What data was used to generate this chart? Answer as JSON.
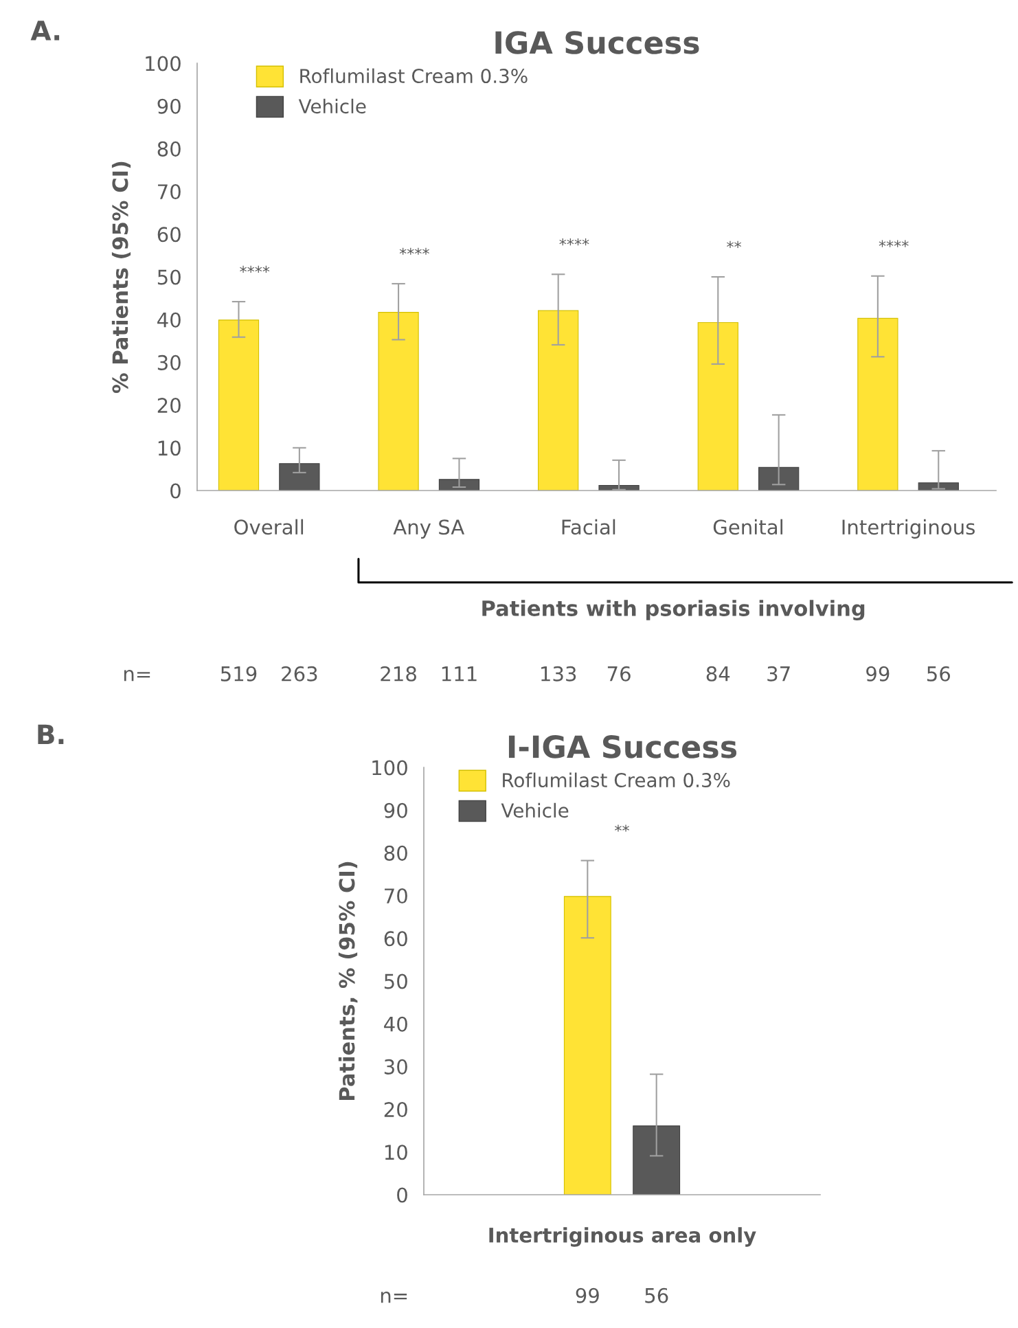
{
  "chart_data": [
    {
      "type": "bar",
      "title": "IGA Success",
      "ylabel": "% Patients (95% CI)",
      "categories": [
        "Overall",
        "Any SA",
        "Facial",
        "Genital",
        "Intertriginous"
      ],
      "series": [
        {
          "name": "Roflumilast Cream 0.3%",
          "color": "#ffe335",
          "values": [
            39.9,
            41.7,
            42.1,
            39.3,
            40.3
          ],
          "errors": [
            [
              35.9,
              44.2
            ],
            [
              35.3,
              48.4
            ],
            [
              34.1,
              50.6
            ],
            [
              29.6,
              50.0
            ],
            [
              31.3,
              50.2
            ]
          ]
        },
        {
          "name": "Vehicle",
          "color": "#595959",
          "values": [
            6.3,
            2.6,
            1.2,
            5.4,
            1.8
          ],
          "errors": [
            [
              4.2,
              10.0
            ],
            [
              0.8,
              7.5
            ],
            [
              0.2,
              7.1
            ],
            [
              1.4,
              17.7
            ],
            [
              0.4,
              9.3
            ]
          ]
        }
      ],
      "ylim": [
        0,
        100
      ],
      "yticks": [
        0,
        10,
        20,
        30,
        40,
        50,
        60,
        70,
        80,
        90,
        100
      ],
      "legend": "top left",
      "grid": false,
      "annotations": [
        "A.",
        "Patients with psoriasis involving",
        "n=",
        "519",
        "263",
        "218",
        "111",
        "133",
        "76",
        "84",
        "37",
        "99",
        "56",
        "****",
        "****",
        "****",
        "**",
        "****"
      ]
    },
    {
      "type": "bar",
      "title": "I-IGA Success",
      "ylabel": "Patients, % (95% CI)",
      "xlabel": "Intertriginous area only",
      "categories": [
        null
      ],
      "series": [
        {
          "name": "Roflumilast Cream 0.3%",
          "color": "#ffe335",
          "values": [
            69.8
          ],
          "errors": [
            [
              60.1,
              78.2
            ]
          ]
        },
        {
          "name": "Vehicle",
          "color": "#595959",
          "values": [
            16.1
          ],
          "errors": [
            [
              9.1,
              28.2
            ]
          ]
        }
      ],
      "ylim": [
        0,
        100
      ],
      "yticks": [
        0,
        10,
        20,
        30,
        40,
        50,
        60,
        70,
        80,
        90,
        100
      ],
      "legend": "top left",
      "grid": false,
      "annotations": [
        "B.",
        "n=",
        "99",
        "56",
        "**"
      ]
    }
  ]
}
